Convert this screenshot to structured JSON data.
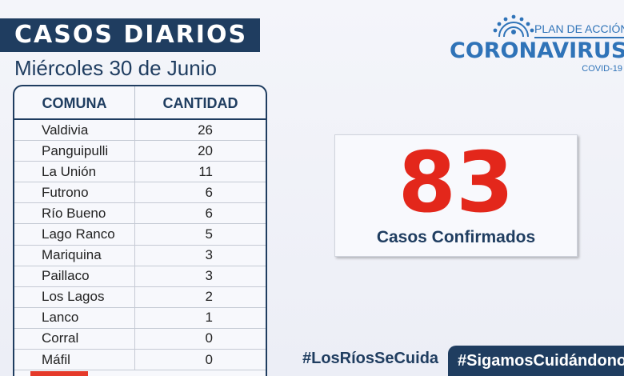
{
  "header": {
    "title": "CASOS DIARIOS",
    "date": "Miércoles 30 de Junio"
  },
  "table": {
    "headers": [
      "COMUNA",
      "CANTIDAD"
    ],
    "rows": [
      {
        "comuna": "Valdivia",
        "cantidad": "26"
      },
      {
        "comuna": "Panguipulli",
        "cantidad": "20"
      },
      {
        "comuna": "La Unión",
        "cantidad": "11"
      },
      {
        "comuna": "Futrono",
        "cantidad": "6"
      },
      {
        "comuna": "Río Bueno",
        "cantidad": "6"
      },
      {
        "comuna": "Lago Ranco",
        "cantidad": "5"
      },
      {
        "comuna": "Mariquina",
        "cantidad": "3"
      },
      {
        "comuna": "Paillaco",
        "cantidad": "3"
      },
      {
        "comuna": "Los Lagos",
        "cantidad": "2"
      },
      {
        "comuna": "Lanco",
        "cantidad": "1"
      },
      {
        "comuna": "Corral",
        "cantidad": "0"
      },
      {
        "comuna": "Máfil",
        "cantidad": "0"
      }
    ]
  },
  "logo": {
    "plan": "PLAN DE ACCIÓN",
    "name": "CORONAVIRUS",
    "sub": "COVID-19",
    "icon": "sun-logo-icon",
    "color": "#2f73b8"
  },
  "summary": {
    "total": "83",
    "label": "Casos Confirmados",
    "number_color": "#e3271b"
  },
  "footer": {
    "hashtag_1": "#LosRíosSeCuida",
    "hashtag_2": "#SigamosCuidándonos"
  },
  "colors": {
    "navy": "#1f3d60",
    "accent_red": "#e53a2a"
  }
}
